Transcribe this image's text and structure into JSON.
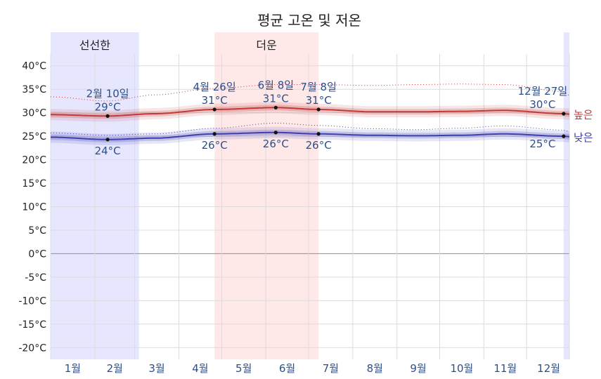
{
  "chart_data": {
    "type": "line",
    "title": "평균 고온 및 저온",
    "y_unit": "°C",
    "ylim": [
      -22.5,
      42.5
    ],
    "y_ticks": [
      40,
      35,
      30,
      25,
      20,
      15,
      10,
      5,
      0,
      -5,
      -10,
      -15,
      -20
    ],
    "y_tick_labels": [
      "40°C",
      "35°C",
      "30°C",
      "25°C",
      "20°C",
      "15°C",
      "10°C",
      "5°C",
      "0°C",
      "-5°C",
      "-10°C",
      "-15°C",
      "-20°C"
    ],
    "x_domain": [
      "01-01",
      "12-31"
    ],
    "months": [
      "1월",
      "2월",
      "3월",
      "4월",
      "5월",
      "6월",
      "7월",
      "8월",
      "9월",
      "10월",
      "11월",
      "12월"
    ],
    "grid": true,
    "seasons": [
      {
        "label": "선선한",
        "start": "01-01",
        "end": "03-04",
        "color": "#e6e6ff"
      },
      {
        "label": "더운",
        "start": "04-26",
        "end": "07-08",
        "color": "#ffe8e8"
      },
      {
        "label": "",
        "start": "12-27",
        "end": "12-31",
        "color": "#e6e6ff"
      }
    ],
    "series": [
      {
        "name": "높은",
        "color": "#c03a3a",
        "x": [
          "01-01",
          "02-10",
          "03-15",
          "04-26",
          "06-08",
          "07-08",
          "08-15",
          "09-15",
          "10-15",
          "11-15",
          "12-27",
          "12-31"
        ],
        "values": [
          29.6,
          29.3,
          29.8,
          30.7,
          31.1,
          30.7,
          30.2,
          30.2,
          30.3,
          30.5,
          29.8,
          29.7
        ],
        "band_inner": 0.6,
        "band_outer": 1.2,
        "p90": [
          33.4,
          32.5,
          33.8,
          35.2,
          36.0,
          36.0,
          35.8,
          36.0,
          36.1,
          36.0,
          34.5,
          33.6
        ]
      },
      {
        "name": "낮은",
        "color": "#3f3fb0",
        "x": [
          "01-01",
          "02-10",
          "03-15",
          "04-26",
          "06-08",
          "07-08",
          "08-15",
          "09-15",
          "10-15",
          "11-15",
          "12-27",
          "12-31"
        ],
        "values": [
          24.8,
          24.3,
          24.6,
          25.5,
          25.8,
          25.5,
          25.2,
          25.1,
          25.2,
          25.5,
          25.0,
          24.9
        ],
        "band_inner": 0.6,
        "band_outer": 1.2,
        "p90": [
          25.7,
          25.2,
          25.5,
          26.7,
          27.8,
          27.3,
          26.6,
          26.4,
          26.7,
          27.2,
          26.3,
          26.0
        ]
      }
    ],
    "annotations": [
      {
        "series": "높은",
        "date_label": "2월 10일",
        "x": "02-10",
        "value_label": "29°C",
        "y": 29.3
      },
      {
        "series": "높은",
        "date_label": "4월 26일",
        "x": "04-26",
        "value_label": "31°C",
        "y": 30.7
      },
      {
        "series": "높은",
        "date_label": "6월 8일",
        "x": "06-08",
        "value_label": "31°C",
        "y": 31.1
      },
      {
        "series": "높은",
        "date_label": "7월 8일",
        "x": "07-08",
        "value_label": "31°C",
        "y": 30.7
      },
      {
        "series": "높은",
        "date_label": "12월 27일",
        "x": "12-27",
        "value_label": "30°C",
        "y": 29.8
      },
      {
        "series": "낮은",
        "date_label": "",
        "x": "02-10",
        "value_label": "24°C",
        "y": 24.3
      },
      {
        "series": "낮은",
        "date_label": "",
        "x": "04-26",
        "value_label": "26°C",
        "y": 25.5
      },
      {
        "series": "낮은",
        "date_label": "",
        "x": "06-08",
        "value_label": "26°C",
        "y": 25.8
      },
      {
        "series": "낮은",
        "date_label": "",
        "x": "07-08",
        "value_label": "26°C",
        "y": 25.5
      },
      {
        "series": "낮은",
        "date_label": "",
        "x": "12-27",
        "value_label": "25°C",
        "y": 25.0
      }
    ]
  }
}
